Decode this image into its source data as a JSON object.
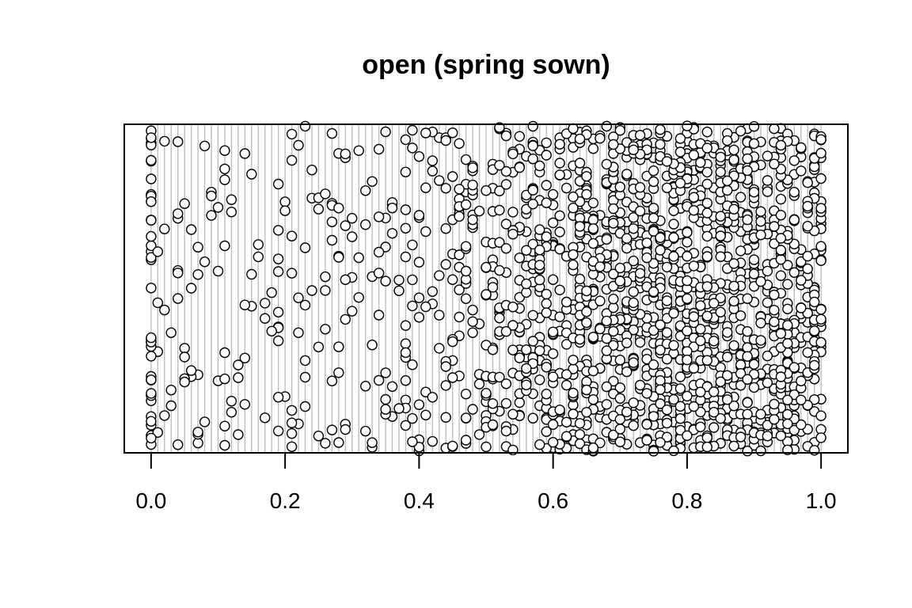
{
  "chart_data": {
    "type": "scatter",
    "title": "open (spring sown)",
    "xlabel": "",
    "ylabel": "",
    "xlim": [
      -0.04,
      1.04
    ],
    "x_ticks": [
      "0.0",
      "0.2",
      "0.4",
      "0.6",
      "0.8",
      "1.0"
    ],
    "x_tick_values": [
      0.0,
      0.2,
      0.4,
      0.6,
      0.8,
      1.0
    ],
    "y_axis_shown": false,
    "background_lines": {
      "orientation": "vertical",
      "count": 101,
      "x_from": 0.0,
      "x_to": 1.0,
      "color": "#bebebe"
    },
    "points": {
      "approximate_count": 1800,
      "x_range": [
        0.0,
        1.0
      ],
      "y_jitter": "uniform, no y scale shown",
      "density_peak_x": 0.8,
      "fill": "#ffffff",
      "stroke": "#000000",
      "x_samples": [
        0.0,
        0.0,
        0.0,
        0.0,
        0.0,
        0.0,
        0.0,
        0.01,
        0.02,
        0.02,
        0.03,
        0.04,
        0.05,
        0.06,
        0.07,
        0.09,
        0.1,
        0.1,
        0.11,
        0.12,
        0.13,
        0.15,
        0.16,
        0.17,
        0.18,
        0.19,
        0.2,
        0.21,
        0.22,
        0.23,
        0.24,
        0.25,
        0.26,
        0.27,
        0.28,
        0.29,
        0.3,
        0.31,
        0.32,
        0.33,
        0.34,
        0.35,
        0.36,
        0.37,
        0.38,
        0.39,
        0.4,
        0.41,
        0.42,
        0.43,
        0.44,
        0.45,
        0.46,
        0.47,
        0.48,
        0.49,
        0.5,
        0.51,
        0.52,
        0.53,
        0.54,
        0.55,
        0.56,
        0.57,
        0.58,
        0.59,
        0.6,
        0.61,
        0.62,
        0.63,
        0.64,
        0.65,
        0.66,
        0.67,
        0.68,
        0.69,
        0.7,
        0.71,
        0.72,
        0.73,
        0.74,
        0.75,
        0.76,
        0.77,
        0.78,
        0.79,
        0.8,
        0.81,
        0.82,
        0.83,
        0.84,
        0.85,
        0.86,
        0.87,
        0.88,
        0.89,
        0.9,
        0.91,
        0.92,
        0.93,
        0.94,
        0.95,
        0.96,
        0.97,
        0.98,
        0.99,
        1.0,
        1.0,
        1.0,
        1.0,
        1.0
      ]
    },
    "grid": false,
    "legend": "none"
  }
}
